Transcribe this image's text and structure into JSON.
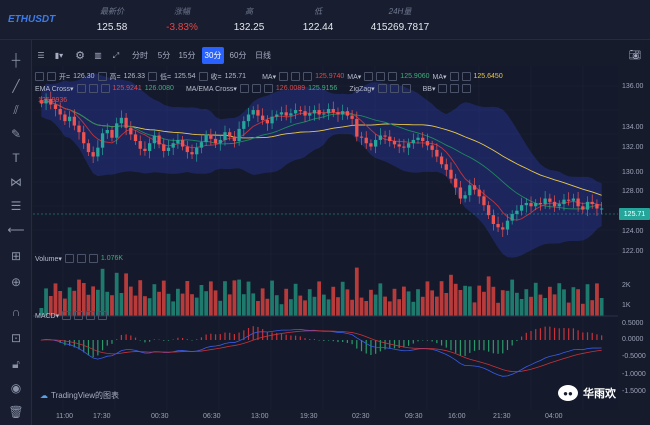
{
  "header": {
    "symbol": "ETHUSDT",
    "stats": [
      {
        "label": "最新价",
        "value": "125.58",
        "color": "#e4e7ee"
      },
      {
        "label": "涨幅",
        "value": "-3.83%",
        "color": "#e04848"
      },
      {
        "label": "高",
        "value": "132.25",
        "color": "#e4e7ee"
      },
      {
        "label": "低",
        "value": "122.44",
        "color": "#e4e7ee"
      },
      {
        "label": "24H量",
        "value": "415269.7817",
        "color": "#e4e7ee"
      }
    ]
  },
  "intervals": [
    "分时",
    "5分",
    "15分",
    "30分",
    "60分",
    "日线"
  ],
  "active_interval": "30分",
  "ohlc": {
    "o_label": "开=",
    "o": "126.30",
    "h_label": "高=",
    "h": "126.33",
    "l_label": "低=",
    "l": "125.54",
    "c_label": "收=",
    "c": "125.71"
  },
  "ma_labels": {
    "ma1": "MA▾",
    "ma1_val": "125.9740",
    "ma2": "MA▾",
    "ma2_val": "125.9060",
    "ma3": "MA▾",
    "ma3_val": "125.6450"
  },
  "row2": {
    "ema": "EMA Cross▾",
    "ema_v1": "125.9241",
    "ema_v2": "126.0080",
    "maema": "MA/EMA Cross▾",
    "maema_v1": "126.0089",
    "maema_v2": "125.9156",
    "zigzag": "ZigZag▾",
    "bb": "BB▾"
  },
  "row3": {
    "label": "",
    "val": "125.9936"
  },
  "volume": {
    "label": "Volume▾",
    "value": "1.076K"
  },
  "macd": {
    "label": "MACD▾"
  },
  "price_ticks": [
    "136.00",
    "134.00",
    "132.00",
    "130.00",
    "128.00",
    "126.00",
    "124.00",
    "122.00"
  ],
  "last_price": "125.71",
  "vol_ticks": [
    "2K",
    "1K"
  ],
  "macd_ticks": [
    "0.5000",
    "0.0000",
    "-0.5000",
    "-1.0000",
    "-1.5000"
  ],
  "time_ticks": [
    "11:00",
    "17:30",
    "00:30",
    "06:30",
    "13:00",
    "19:30",
    "02:30",
    "09:30",
    "16:00",
    "21:30",
    "04:00"
  ],
  "footer": {
    "tradingview": "TradingView的图表"
  },
  "watermark": "华雨欢",
  "chart_data": {
    "type": "candlestick",
    "ylim": [
      120.5,
      137.5
    ],
    "closes": [
      135.2,
      135.6,
      135.1,
      134.7,
      134.2,
      133.6,
      134.0,
      133.2,
      132.6,
      131.6,
      130.8,
      130.4,
      131.2,
      132.5,
      132.8,
      132.1,
      133.4,
      133.9,
      133.0,
      132.4,
      131.8,
      131.1,
      130.9,
      131.6,
      132.3,
      131.5,
      130.9,
      131.2,
      131.6,
      131.9,
      131.3,
      130.8,
      130.6,
      131.2,
      131.7,
      132.4,
      132.0,
      131.6,
      131.9,
      132.6,
      132.2,
      131.8,
      132.9,
      133.6,
      134.2,
      134.6,
      134.1,
      133.7,
      133.4,
      134.0,
      134.2,
      134.4,
      134.1,
      134.3,
      134.6,
      134.5,
      134.1,
      134.3,
      134.6,
      134.2,
      134.3,
      134.7,
      134.4,
      134.2,
      134.5,
      134.1,
      133.8,
      132.2,
      132.1,
      131.6,
      131.3,
      131.9,
      132.3,
      132.2,
      131.8,
      131.5,
      131.3,
      131.2,
      131.6,
      131.9,
      132.1,
      131.8,
      131.4,
      131.0,
      130.4,
      129.7,
      129.2,
      128.4,
      127.6,
      126.6,
      126.9,
      127.8,
      127.4,
      126.8,
      126.0,
      125.1,
      124.3,
      124.0,
      123.8,
      124.6,
      125.2,
      125.5,
      126.0,
      126.2,
      125.9,
      126.2,
      126.1,
      126.6,
      126.3,
      125.9,
      126.1,
      126.5,
      126.4,
      126.6,
      125.9,
      125.6,
      126.3,
      126.1,
      125.7,
      125.7
    ]
  }
}
